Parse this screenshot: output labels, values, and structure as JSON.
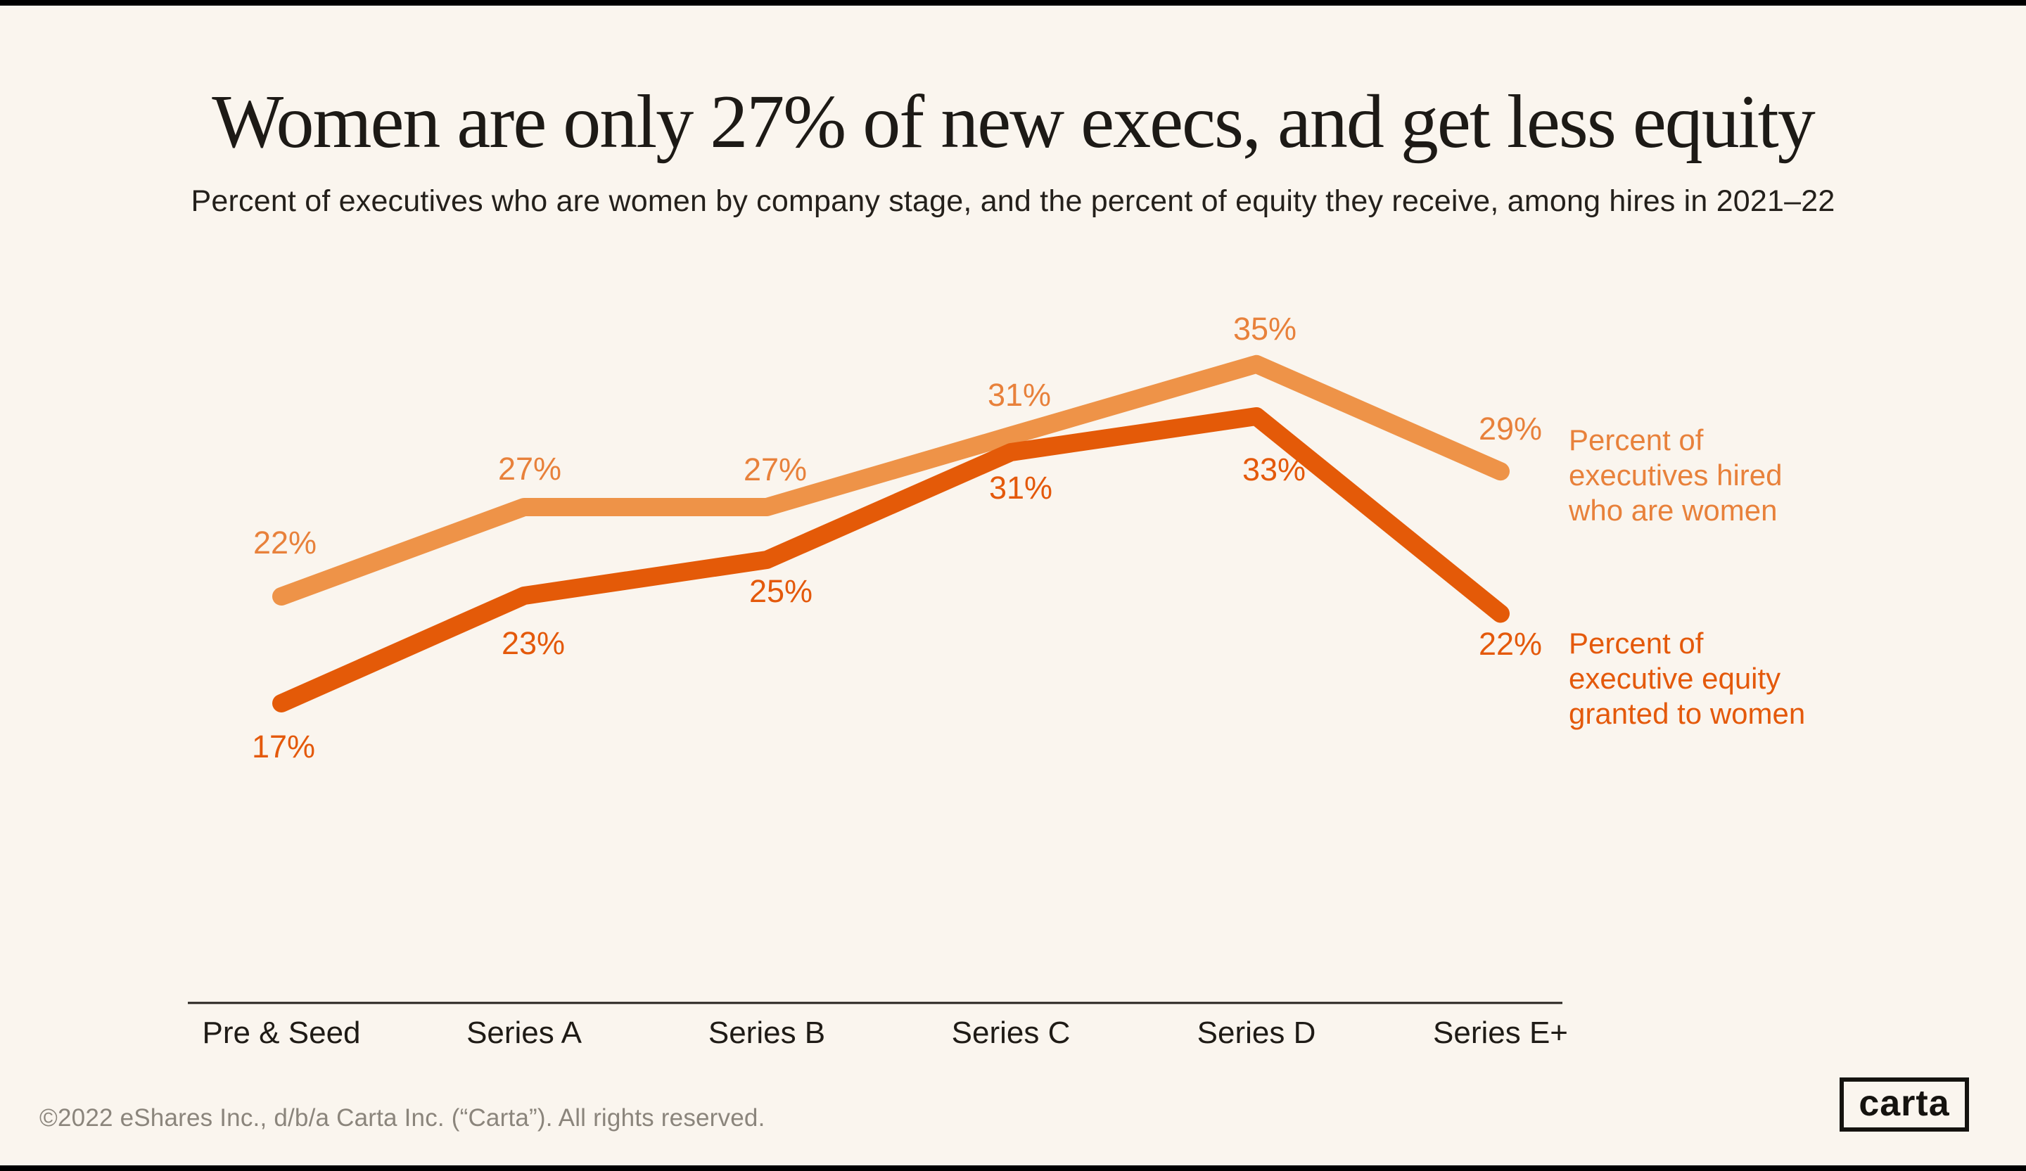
{
  "page": {
    "background_color": "#FAF5EE",
    "frame_color": "#000000"
  },
  "header": {
    "title": "Women are only 27% of new execs, and get less equity",
    "subtitle": "Percent of executives who are women by company stage, and the percent of equity they receive, among hires in 2021–22"
  },
  "chart_data": {
    "type": "line",
    "categories": [
      "Pre & Seed",
      "Series A",
      "Series B",
      "Series C",
      "Series D",
      "Series E+"
    ],
    "series": [
      {
        "name": "Percent of executives hired who are women",
        "values": [
          22,
          27,
          27,
          31,
          35,
          29
        ],
        "color": "#EE9348",
        "label_color": "#E8813B"
      },
      {
        "name": "Percent of executive equity granted to women",
        "values": [
          17,
          23,
          25,
          31,
          33,
          22
        ],
        "color": "#E45A08",
        "label_color": "#E4590B"
      }
    ],
    "value_suffix": "%",
    "ylim": [
      15,
      37
    ],
    "grid": false,
    "legend_position": "right",
    "axis_line_color": "#26221E"
  },
  "footer": {
    "copyright": "©2022 eShares Inc., d/b/a Carta Inc. (“Carta”). All rights reserved.",
    "logo_text": "carta"
  }
}
